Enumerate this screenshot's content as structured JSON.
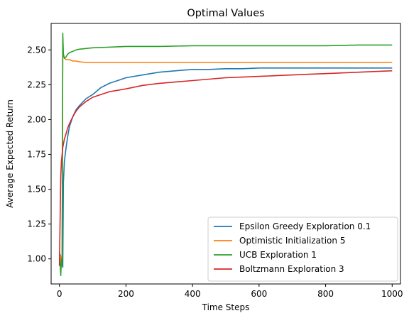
{
  "chart_data": {
    "type": "line",
    "title": "Optimal Values",
    "xlabel": "Time Steps",
    "ylabel": "Average Expected Return",
    "xlim": [
      -25,
      1025
    ],
    "ylim": [
      0.82,
      2.69
    ],
    "xticks": [
      0,
      200,
      400,
      600,
      800,
      1000
    ],
    "xtick_labels": [
      "0",
      "200",
      "400",
      "600",
      "800",
      "1000"
    ],
    "yticks": [
      1.0,
      1.25,
      1.5,
      1.75,
      2.0,
      2.25,
      2.5
    ],
    "ytick_labels": [
      "1.00",
      "1.25",
      "1.50",
      "1.75",
      "2.00",
      "2.25",
      "2.50"
    ],
    "grid": false,
    "legend_position": "lower-right",
    "series": [
      {
        "name": "Epsilon Greedy Exploration 0.1",
        "color": "#1f77b4",
        "x": [
          0,
          2,
          5,
          8,
          10,
          12,
          15,
          20,
          25,
          30,
          40,
          50,
          60,
          80,
          100,
          125,
          150,
          175,
          200,
          250,
          300,
          350,
          400,
          450,
          500,
          550,
          600,
          650,
          700,
          750,
          800,
          850,
          900,
          950,
          1000
        ],
        "y": [
          0.95,
          1.03,
          1.0,
          0.96,
          0.94,
          1.55,
          1.7,
          1.8,
          1.88,
          1.95,
          2.02,
          2.07,
          2.1,
          2.15,
          2.18,
          2.23,
          2.26,
          2.28,
          2.3,
          2.32,
          2.34,
          2.35,
          2.36,
          2.36,
          2.365,
          2.365,
          2.37,
          2.37,
          2.37,
          2.37,
          2.37,
          2.37,
          2.37,
          2.37,
          2.37
        ]
      },
      {
        "name": "Optimistic Initialization 5",
        "color": "#ff7f0e",
        "x": [
          0,
          2,
          4,
          6,
          8,
          10,
          12,
          15,
          20,
          30,
          40,
          50,
          60,
          80,
          100,
          150,
          200,
          300,
          400,
          500,
          600,
          700,
          800,
          900,
          1000
        ],
        "y": [
          1.05,
          0.95,
          1.02,
          0.98,
          1.0,
          2.5,
          2.46,
          2.44,
          2.43,
          2.43,
          2.42,
          2.42,
          2.415,
          2.41,
          2.41,
          2.41,
          2.41,
          2.41,
          2.41,
          2.41,
          2.41,
          2.41,
          2.41,
          2.41,
          2.41
        ]
      },
      {
        "name": "UCB Exploration 1",
        "color": "#2ca02c",
        "x": [
          0,
          2,
          4,
          6,
          8,
          10,
          12,
          15,
          20,
          25,
          30,
          40,
          50,
          60,
          80,
          100,
          150,
          200,
          300,
          400,
          500,
          600,
          700,
          800,
          900,
          1000
        ],
        "y": [
          1.0,
          0.96,
          0.88,
          1.0,
          0.95,
          2.62,
          2.47,
          2.44,
          2.45,
          2.47,
          2.48,
          2.49,
          2.5,
          2.505,
          2.51,
          2.515,
          2.52,
          2.525,
          2.525,
          2.53,
          2.53,
          2.53,
          2.53,
          2.53,
          2.535,
          2.535
        ]
      },
      {
        "name": "Boltzmann Exploration 3",
        "color": "#d62728",
        "x": [
          0,
          2,
          4,
          6,
          8,
          10,
          15,
          20,
          25,
          30,
          40,
          50,
          60,
          80,
          100,
          125,
          150,
          200,
          250,
          300,
          350,
          400,
          450,
          500,
          550,
          600,
          650,
          700,
          750,
          800,
          850,
          900,
          950,
          1000
        ],
        "y": [
          0.95,
          1.3,
          1.6,
          1.7,
          1.75,
          1.8,
          1.86,
          1.9,
          1.94,
          1.97,
          2.02,
          2.06,
          2.09,
          2.13,
          2.16,
          2.18,
          2.2,
          2.22,
          2.245,
          2.26,
          2.27,
          2.28,
          2.29,
          2.3,
          2.305,
          2.31,
          2.315,
          2.32,
          2.325,
          2.33,
          2.335,
          2.34,
          2.345,
          2.35
        ]
      }
    ]
  }
}
